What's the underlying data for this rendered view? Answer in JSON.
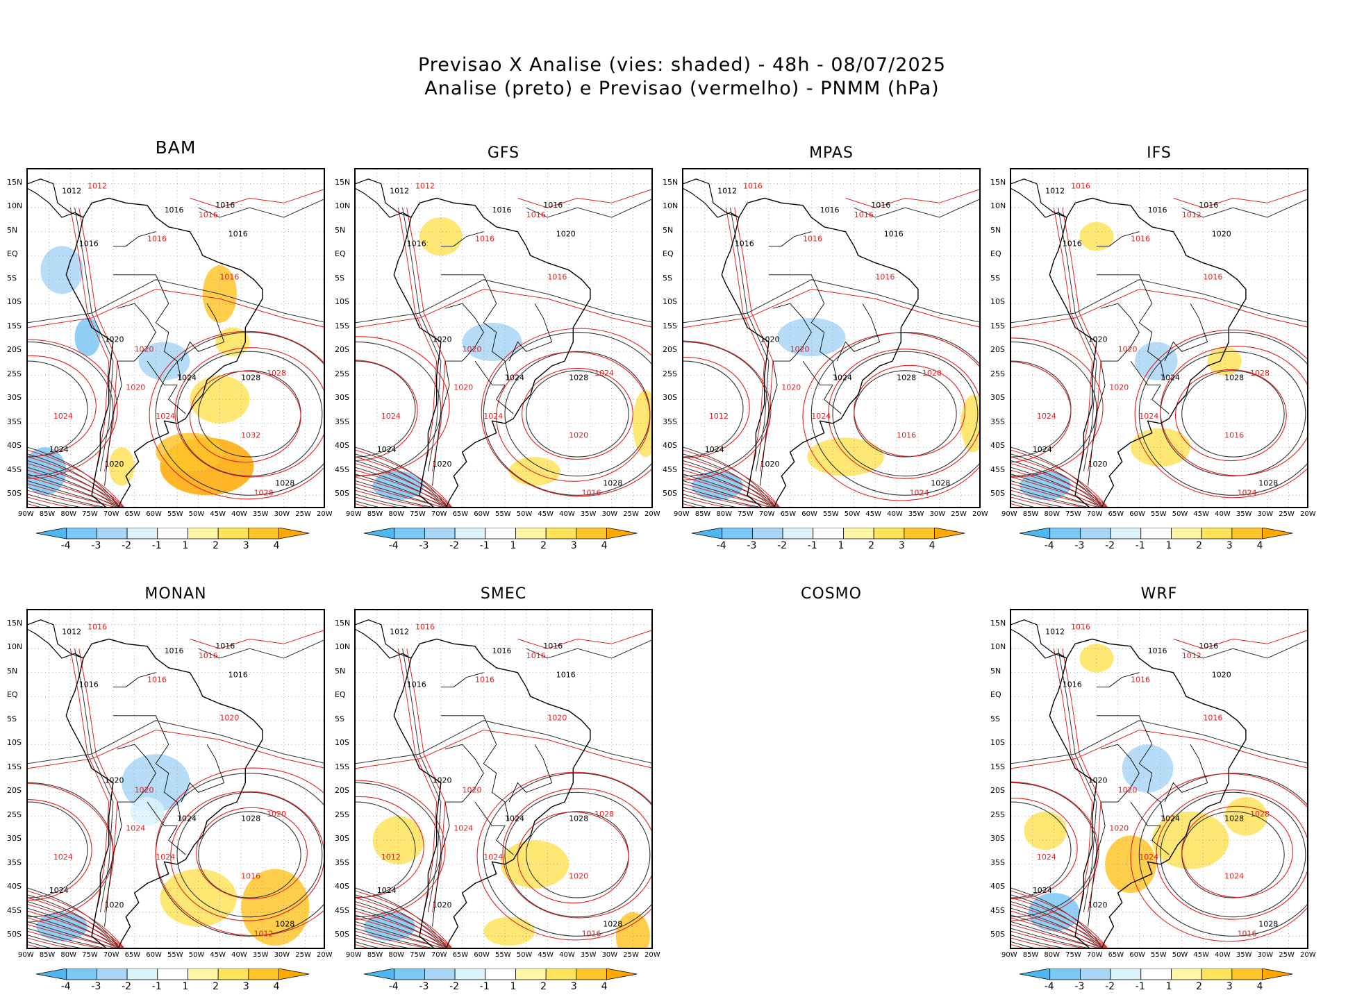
{
  "title": {
    "line1": "Previsao X Analise (vies: shaded) - 48h - 08/07/2025",
    "line2": "Analise (preto) e Previsao (vermelho) - PNMM (hPa)"
  },
  "axes": {
    "lat_labels": [
      "15N",
      "10N",
      "5N",
      "EQ",
      "5S",
      "10S",
      "15S",
      "20S",
      "25S",
      "30S",
      "35S",
      "40S",
      "45S",
      "50S"
    ],
    "lon_labels": [
      "90W",
      "85W",
      "80W",
      "75W",
      "70W",
      "65W",
      "60W",
      "55W",
      "50W",
      "45W",
      "40W",
      "35W",
      "30W",
      "25W",
      "20W"
    ]
  },
  "colorbar": {
    "ticks": [
      "-4",
      "-3",
      "-2",
      "-1",
      "1",
      "2",
      "3",
      "4"
    ],
    "colors": [
      "#4fb6f0",
      "#7cc8f4",
      "#a9d6f6",
      "#dcf4fb",
      "#ffffff",
      "#fff6a6",
      "#ffe35a",
      "#ffc62a",
      "#ffa800"
    ]
  },
  "panels": [
    {
      "name": "BAM",
      "has_map": true,
      "labels_black": [
        "1012",
        "1016",
        "1016",
        "1016",
        "1016",
        "1020",
        "1024",
        "1028",
        "1028",
        "1024",
        "1020"
      ],
      "labels_red": [
        "1012",
        "1016",
        "1016",
        "1016",
        "1020",
        "1020",
        "1024",
        "1028",
        "1032",
        "1028",
        "1024"
      ]
    },
    {
      "name": "GFS",
      "has_map": true,
      "labels_black": [
        "1012",
        "1016",
        "1016",
        "1016",
        "1020",
        "1020",
        "1024",
        "1028",
        "1028",
        "1024",
        "1020"
      ],
      "labels_red": [
        "1012",
        "1016",
        "1016",
        "1016",
        "1020",
        "1020",
        "1024",
        "1024",
        "1020",
        "1016",
        "1024"
      ]
    },
    {
      "name": "MPAS",
      "has_map": true,
      "labels_black": [
        "1012",
        "1016",
        "1016",
        "1016",
        "1016",
        "1020",
        "1024",
        "1028",
        "1028",
        "1024",
        "1020"
      ],
      "labels_red": [
        "1016",
        "1016",
        "1016",
        "1016",
        "1020",
        "1020",
        "1024",
        "1020",
        "1016",
        "1024",
        "1012"
      ]
    },
    {
      "name": "IFS",
      "has_map": true,
      "labels_black": [
        "1012",
        "1016",
        "1016",
        "1016",
        "1020",
        "1020",
        "1024",
        "1028",
        "1028",
        "1024",
        "1020"
      ],
      "labels_red": [
        "1016",
        "1012",
        "1016",
        "1016",
        "1020",
        "1020",
        "1024",
        "1028",
        "1016",
        "1024",
        "1024"
      ]
    },
    {
      "name": "MONAN",
      "has_map": true,
      "labels_black": [
        "1012",
        "1016",
        "1016",
        "1016",
        "1016",
        "1020",
        "1024",
        "1028",
        "1028",
        "1024",
        "1020"
      ],
      "labels_red": [
        "1016",
        "1016",
        "1016",
        "1020",
        "1020",
        "1024",
        "1024",
        "1020",
        "1016",
        "1012",
        "1024"
      ]
    },
    {
      "name": "SMEC",
      "has_map": true,
      "labels_black": [
        "1012",
        "1016",
        "1016",
        "1016",
        "1016",
        "1020",
        "1024",
        "1028",
        "1028",
        "1024",
        "1020"
      ],
      "labels_red": [
        "1016",
        "1016",
        "1016",
        "1020",
        "1020",
        "1024",
        "1024",
        "1028",
        "1020",
        "1016",
        "1012"
      ]
    },
    {
      "name": "COSMO",
      "has_map": false,
      "labels_black": [],
      "labels_red": []
    },
    {
      "name": "WRF",
      "has_map": true,
      "labels_black": [
        "1012",
        "1016",
        "1016",
        "1016",
        "1020",
        "1020",
        "1024",
        "1028",
        "1028",
        "1024",
        "1020"
      ],
      "labels_red": [
        "1016",
        "1012",
        "1016",
        "1016",
        "1020",
        "1020",
        "1024",
        "1028",
        "1024",
        "1016",
        "1024"
      ]
    }
  ]
}
